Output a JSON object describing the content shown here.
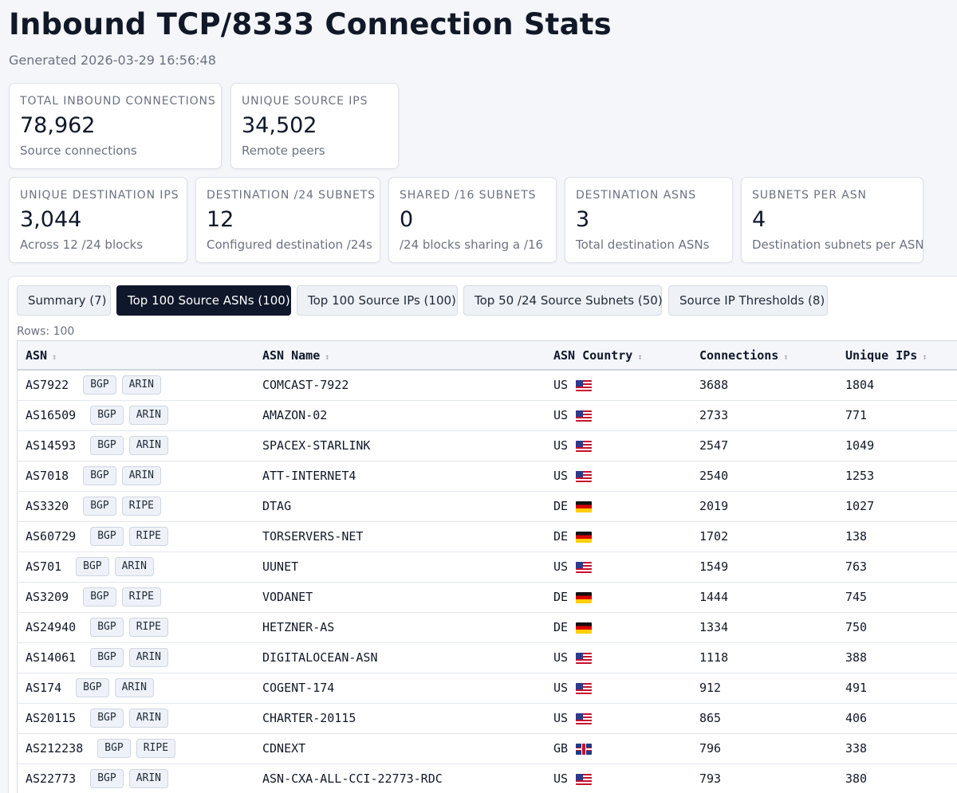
{
  "page": {
    "title": "Inbound TCP/8333 Connection Stats",
    "generated": "Generated 2026-03-29 16:56:48"
  },
  "cards_row1": [
    {
      "label": "TOTAL INBOUND CONNECTIONS",
      "value": "78,962",
      "sub": "Source connections"
    },
    {
      "label": "UNIQUE SOURCE IPS",
      "value": "34,502",
      "sub": "Remote peers"
    }
  ],
  "cards_row2": [
    {
      "label": "UNIQUE DESTINATION IPS",
      "value": "3,044",
      "sub": "Across 12 /24 blocks"
    },
    {
      "label": "DESTINATION /24 SUBNETS",
      "value": "12",
      "sub": "Configured destination /24s"
    },
    {
      "label": "SHARED /16 SUBNETS",
      "value": "0",
      "sub": "/24 blocks sharing a /16"
    },
    {
      "label": "DESTINATION ASNS",
      "value": "3",
      "sub": "Total destination ASNs"
    },
    {
      "label": "SUBNETS PER ASN",
      "value": "4",
      "sub": "Destination subnets per ASN"
    }
  ],
  "tabs": [
    {
      "label": "Summary (7)",
      "active": false
    },
    {
      "label": "Top 100 Source ASNs (100)",
      "active": true
    },
    {
      "label": "Top 100 Source IPs (100)",
      "active": false
    },
    {
      "label": "Top 50 /24 Source Subnets (50)",
      "active": false
    },
    {
      "label": "Source IP Thresholds (8)",
      "active": false
    }
  ],
  "rows_label": "Rows: 100",
  "table": {
    "sort_icon": "sort-icon",
    "columns": [
      "ASN",
      "ASN Name",
      "ASN Country",
      "Connections",
      "Unique IPs"
    ],
    "rows": [
      {
        "asn": "AS7922",
        "badges": [
          "BGP",
          "ARIN"
        ],
        "name": "COMCAST-7922",
        "country": "US",
        "flag": "us",
        "connections": "3688",
        "unique_ips": "1804"
      },
      {
        "asn": "AS16509",
        "badges": [
          "BGP",
          "ARIN"
        ],
        "name": "AMAZON-02",
        "country": "US",
        "flag": "us",
        "connections": "2733",
        "unique_ips": "771"
      },
      {
        "asn": "AS14593",
        "badges": [
          "BGP",
          "ARIN"
        ],
        "name": "SPACEX-STARLINK",
        "country": "US",
        "flag": "us",
        "connections": "2547",
        "unique_ips": "1049"
      },
      {
        "asn": "AS7018",
        "badges": [
          "BGP",
          "ARIN"
        ],
        "name": "ATT-INTERNET4",
        "country": "US",
        "flag": "us",
        "connections": "2540",
        "unique_ips": "1253"
      },
      {
        "asn": "AS3320",
        "badges": [
          "BGP",
          "RIPE"
        ],
        "name": "DTAG",
        "country": "DE",
        "flag": "de",
        "connections": "2019",
        "unique_ips": "1027"
      },
      {
        "asn": "AS60729",
        "badges": [
          "BGP",
          "RIPE"
        ],
        "name": "TORSERVERS-NET",
        "country": "DE",
        "flag": "de",
        "connections": "1702",
        "unique_ips": "138"
      },
      {
        "asn": "AS701",
        "badges": [
          "BGP",
          "ARIN"
        ],
        "name": "UUNET",
        "country": "US",
        "flag": "us",
        "connections": "1549",
        "unique_ips": "763"
      },
      {
        "asn": "AS3209",
        "badges": [
          "BGP",
          "RIPE"
        ],
        "name": "VODANET",
        "country": "DE",
        "flag": "de",
        "connections": "1444",
        "unique_ips": "745"
      },
      {
        "asn": "AS24940",
        "badges": [
          "BGP",
          "RIPE"
        ],
        "name": "HETZNER-AS",
        "country": "DE",
        "flag": "de",
        "connections": "1334",
        "unique_ips": "750"
      },
      {
        "asn": "AS14061",
        "badges": [
          "BGP",
          "ARIN"
        ],
        "name": "DIGITALOCEAN-ASN",
        "country": "US",
        "flag": "us",
        "connections": "1118",
        "unique_ips": "388"
      },
      {
        "asn": "AS174",
        "badges": [
          "BGP",
          "ARIN"
        ],
        "name": "COGENT-174",
        "country": "US",
        "flag": "us",
        "connections": "912",
        "unique_ips": "491"
      },
      {
        "asn": "AS20115",
        "badges": [
          "BGP",
          "ARIN"
        ],
        "name": "CHARTER-20115",
        "country": "US",
        "flag": "us",
        "connections": "865",
        "unique_ips": "406"
      },
      {
        "asn": "AS212238",
        "badges": [
          "BGP",
          "RIPE"
        ],
        "name": "CDNEXT",
        "country": "GB",
        "flag": "gb",
        "connections": "796",
        "unique_ips": "338"
      },
      {
        "asn": "AS22773",
        "badges": [
          "BGP",
          "ARIN"
        ],
        "name": "ASN-CXA-ALL-CCI-22773-RDC",
        "country": "US",
        "flag": "us",
        "connections": "793",
        "unique_ips": "380"
      }
    ]
  }
}
